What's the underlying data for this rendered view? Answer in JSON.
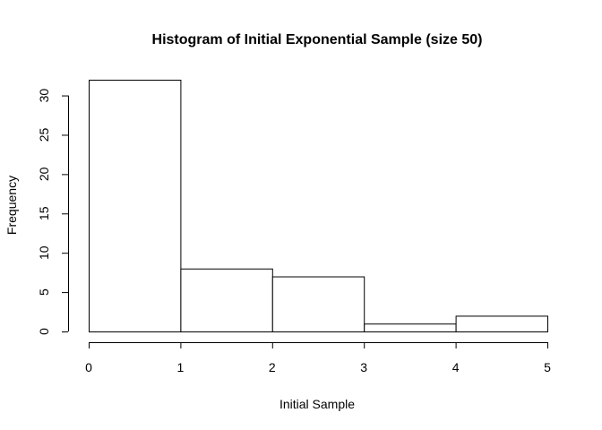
{
  "chart_data": {
    "type": "histogram",
    "title": "Histogram of Initial Exponential Sample (size 50)",
    "xlabel": "Initial Sample",
    "ylabel": "Frequency",
    "bins": [
      {
        "start": 0,
        "end": 1,
        "count": 32
      },
      {
        "start": 1,
        "end": 2,
        "count": 8
      },
      {
        "start": 2,
        "end": 3,
        "count": 7
      },
      {
        "start": 3,
        "end": 4,
        "count": 1
      },
      {
        "start": 4,
        "end": 5,
        "count": 2
      }
    ],
    "xlim": [
      0,
      5
    ],
    "ylim": [
      0,
      32
    ],
    "x_ticks": [
      0,
      1,
      2,
      3,
      4,
      5
    ],
    "y_ticks": [
      0,
      5,
      10,
      15,
      20,
      25,
      30
    ],
    "bar_fill": "#ffffff",
    "bar_stroke": "#000000",
    "grid": false
  }
}
